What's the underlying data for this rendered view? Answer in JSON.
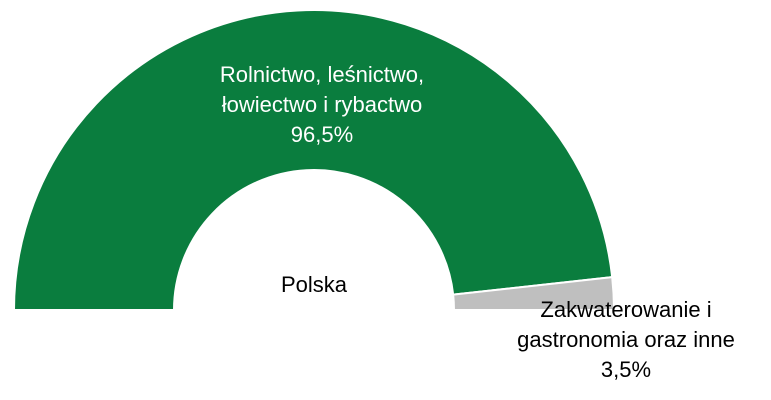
{
  "chart_data": {
    "type": "half-donut",
    "center_label": "Polska",
    "categories": [
      "Rolnictwo, leśnictwo, łowiectwo i rybactwo",
      "Zakwaterowanie i gastronomia oraz inne"
    ],
    "values": [
      96.5,
      3.5
    ],
    "value_labels": [
      "96,5%",
      "3,5%"
    ],
    "colors": [
      "#0a7d3e",
      "#bfbfbf"
    ]
  }
}
